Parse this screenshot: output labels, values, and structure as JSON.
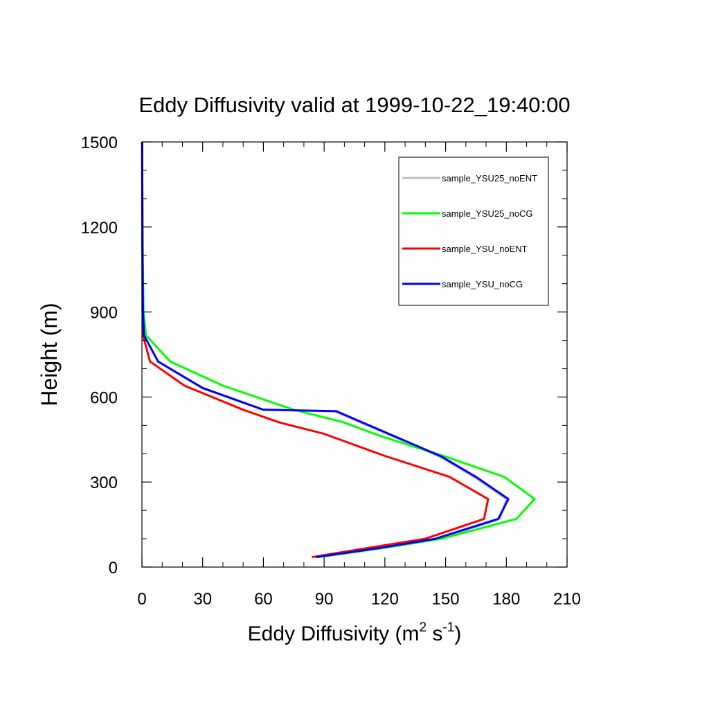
{
  "chart_data": {
    "type": "line",
    "title": "Eddy Diffusivity valid at 1999-10-22_19:40:00",
    "xlabel": "Eddy Diffusivity (m",
    "xlabel_sup1": "2",
    "xlabel_mid": " s",
    "xlabel_sup2": "-1",
    "xlabel_end": ")",
    "ylabel": "Height (m)",
    "xlim": [
      0,
      210
    ],
    "ylim": [
      0,
      1500
    ],
    "xticks": [
      0,
      30,
      60,
      90,
      120,
      150,
      180,
      210
    ],
    "yticks": [
      0,
      300,
      600,
      900,
      1200,
      1500
    ],
    "legend_position": "top-right",
    "series": [
      {
        "name": "sample_YSU25_noENT",
        "color": "#bdbdbd",
        "points": [
          [
            86,
            35
          ],
          [
            120,
            68
          ],
          [
            147,
            100
          ],
          [
            177,
            170
          ],
          [
            180,
            240
          ],
          [
            164,
            318
          ],
          [
            147,
            390
          ],
          [
            121,
            470
          ],
          [
            95,
            550
          ],
          [
            60,
            555
          ],
          [
            30,
            630
          ],
          [
            8,
            725
          ],
          [
            1,
            818
          ],
          [
            0.5,
            900
          ],
          [
            0.3,
            1100
          ],
          [
            0.2,
            1300
          ],
          [
            0.1,
            1500
          ]
        ]
      },
      {
        "name": "sample_YSU25_noCG",
        "color": "#00ff00",
        "points": [
          [
            87,
            35
          ],
          [
            120,
            68
          ],
          [
            148,
            100
          ],
          [
            185,
            170
          ],
          [
            194,
            240
          ],
          [
            179,
            318
          ],
          [
            149,
            392
          ],
          [
            118,
            462
          ],
          [
            99,
            512
          ],
          [
            75,
            555
          ],
          [
            40,
            640
          ],
          [
            14,
            725
          ],
          [
            2,
            818
          ],
          [
            0.8,
            900
          ],
          [
            0.4,
            1100
          ],
          [
            0.2,
            1300
          ],
          [
            0.1,
            1500
          ]
        ]
      },
      {
        "name": "sample_YSU_noENT",
        "color": "#ff0000",
        "points": [
          [
            84,
            35
          ],
          [
            112,
            68
          ],
          [
            140,
            100
          ],
          [
            169,
            170
          ],
          [
            171,
            240
          ],
          [
            152,
            318
          ],
          [
            120,
            392
          ],
          [
            90,
            470
          ],
          [
            68,
            510
          ],
          [
            50,
            555
          ],
          [
            21,
            640
          ],
          [
            4,
            725
          ],
          [
            0.5,
            818
          ],
          [
            0.3,
            900
          ],
          [
            0.2,
            1100
          ],
          [
            0.1,
            1300
          ],
          [
            0.1,
            1500
          ]
        ]
      },
      {
        "name": "sample_YSU_noCG",
        "color": "#0000ff",
        "points": [
          [
            86,
            35
          ],
          [
            118,
            68
          ],
          [
            145,
            100
          ],
          [
            176,
            170
          ],
          [
            181,
            240
          ],
          [
            165,
            318
          ],
          [
            148,
            390
          ],
          [
            122,
            470
          ],
          [
            96,
            550
          ],
          [
            60,
            555
          ],
          [
            30,
            632
          ],
          [
            8,
            725
          ],
          [
            1,
            818
          ],
          [
            0.5,
            900
          ],
          [
            0.3,
            1100
          ],
          [
            0.2,
            1300
          ],
          [
            0.1,
            1500
          ]
        ]
      }
    ]
  }
}
